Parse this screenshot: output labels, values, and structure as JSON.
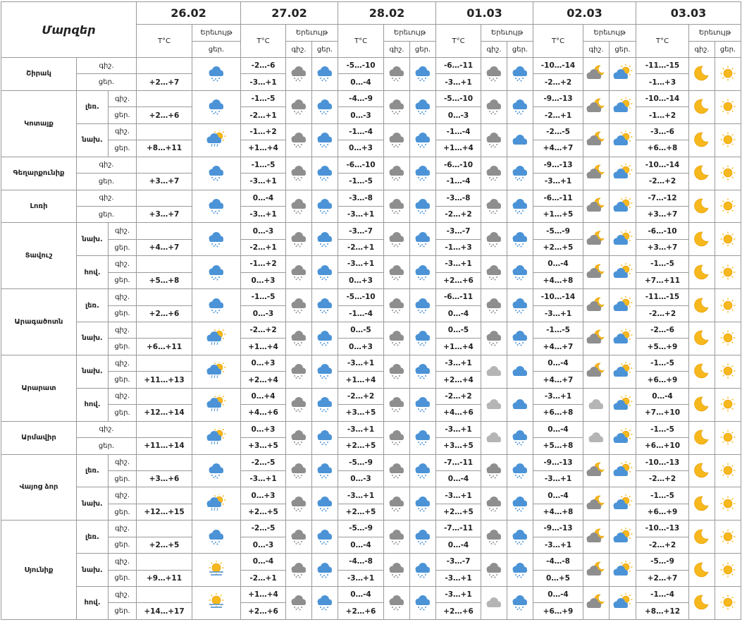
{
  "header": {
    "title": "Մարզեր",
    "columns": [
      {
        "date": "26.02",
        "temp": "T°C",
        "phenomenon": "Երեւույթ",
        "sub": [
          "ցեր."
        ]
      },
      {
        "date": "27.02",
        "temp": "T°C",
        "phenomenon": "Երեւույթ",
        "sub": [
          "գիշ.",
          "ցեր."
        ]
      },
      {
        "date": "28.02",
        "temp": "T°C",
        "phenomenon": "Երեւույթ",
        "sub": [
          "գիշ.",
          "ցեր."
        ]
      },
      {
        "date": "01.03",
        "temp": "T°C",
        "phenomenon": "Երեւույթ",
        "sub": [
          "գիշ.",
          "ցեր."
        ]
      },
      {
        "date": "02.03",
        "temp": "T°C",
        "phenomenon": "Երեւույթ",
        "sub": [
          "գիշ.",
          "ցեր."
        ]
      },
      {
        "date": "03.03",
        "temp": "T°C",
        "phenomenon": "Երեւույթ",
        "sub": [
          "գիշ.",
          "ցեր."
        ]
      }
    ]
  },
  "regions": [
    {
      "name": "Շիրակ",
      "zones": [
        {
          "night_label": "գիշ.",
          "night": [
            "-2…-6",
            "-5…-10",
            "-6…-11",
            "-10…-14",
            "-11…-15"
          ],
          "day_label": "ցեր.",
          "day": [
            "+2…+7",
            "-3…+1",
            "0…-4",
            "-3…+1",
            "-2…+2",
            "-1…+3"
          ]
        }
      ]
    },
    {
      "name": "Կոտայք",
      "zones": [
        {
          "zone": "լեռ.",
          "night_label": "գիշ.",
          "night": [
            "-1…-5",
            "-4…-9",
            "-5…-10",
            "-9…-13",
            "-10…-14"
          ],
          "day_label": "ցեր.",
          "day": [
            "+2…+6",
            "-2…+1",
            "0…-3",
            "0…-3",
            "-2…+1",
            "-1…+2"
          ]
        },
        {
          "zone": "նախ.",
          "night_label": "գիշ.",
          "night": [
            "-1…+2",
            "-1…-4",
            "-1…-4",
            "-2…-5",
            "-3…-6"
          ],
          "day_label": "ցեր.",
          "day": [
            "+8…+11",
            "+1…+4",
            "0…+3",
            "+1…+4",
            "+4…+7",
            "+6…+8"
          ]
        }
      ]
    },
    {
      "name": "Գեղարքունիք",
      "zones": [
        {
          "night_label": "գիշ.",
          "night": [
            "-1…-5",
            "-6…-10",
            "-6…-10",
            "-9…-13",
            "-10…-14"
          ],
          "day_label": "ցեր.",
          "day": [
            "+3…+7",
            "-3…+1",
            "-1…-5",
            "-1…-4",
            "-3…+1",
            "-2…+2"
          ]
        }
      ]
    },
    {
      "name": "Լոռի",
      "zones": [
        {
          "night_label": "գիշ.",
          "night": [
            "0…-4",
            "-3…-8",
            "-3…-8",
            "-6…-11",
            "-7…-12"
          ],
          "day_label": "ցեր.",
          "day": [
            "+3…+7",
            "-3…+1",
            "-3…+1",
            "-2…+2",
            "+1…+5",
            "+3…+7"
          ]
        }
      ]
    },
    {
      "name": "Տավուշ",
      "zones": [
        {
          "zone": "նախ.",
          "night_label": "գիշ.",
          "night": [
            "0…-3",
            "-3…-7",
            "-3…-7",
            "-5…-9",
            "-6…-10"
          ],
          "day_label": "ցեր.",
          "day": [
            "+4…+7",
            "-2…+1",
            "-2…+1",
            "-1…+3",
            "+2…+5",
            "+3…+7"
          ]
        },
        {
          "zone": "հով.",
          "night_label": "գիշ.",
          "night": [
            "-1…+2",
            "-3…+1",
            "-3…+1",
            "0…-4",
            "-1…-5"
          ],
          "day_label": "ցեր.",
          "day": [
            "+5…+8",
            "0…+3",
            "0…+3",
            "+2…+6",
            "+4…+8",
            "+7…+11"
          ]
        }
      ]
    },
    {
      "name": "Արագածոտն",
      "zones": [
        {
          "zone": "լեռ.",
          "night_label": "գիշ.",
          "night": [
            "-1…-5",
            "-5…-10",
            "-6…-11",
            "-10…-14",
            "-11…-15"
          ],
          "day_label": "ցեր.",
          "day": [
            "+2…+6",
            "0…-3",
            "-1…-4",
            "0…-4",
            "-3…+1",
            "-2…+2"
          ]
        },
        {
          "zone": "նախ.",
          "night_label": "գիշ.",
          "night": [
            "-2…+2",
            "0…-5",
            "0…-5",
            "-1…-5",
            "-2…-6"
          ],
          "day_label": "ցեր.",
          "day": [
            "+6…+11",
            "+1…+4",
            "0…+3",
            "+1…+4",
            "+4…+7",
            "+5…+9"
          ]
        }
      ]
    },
    {
      "name": "Արարատ",
      "zones": [
        {
          "zone": "նախ.",
          "night_label": "գիշ.",
          "night": [
            "0…+3",
            "-3…+1",
            "-3…+1",
            "0…-4",
            "-1…-5"
          ],
          "day_label": "ցեր.",
          "day": [
            "+11…+13",
            "+2…+4",
            "+1…+4",
            "+2…+4",
            "+4…+7",
            "+6…+9"
          ]
        },
        {
          "zone": "հով.",
          "night_label": "գիշ.",
          "night": [
            "0…+4",
            "-2…+2",
            "-2…+2",
            "-3…+1",
            "0…-4"
          ],
          "day_label": "ցեր.",
          "day": [
            "+12…+14",
            "+4…+6",
            "+3…+5",
            "+4…+6",
            "+6…+8",
            "+7…+10"
          ]
        }
      ]
    },
    {
      "name": "Արմավիր",
      "zones": [
        {
          "night_label": "գիշ.",
          "night": [
            "0…+3",
            "-3…+1",
            "-3…+1",
            "0…-4",
            "-1…-5"
          ],
          "day_label": "ցեր.",
          "day": [
            "+11…+14",
            "+3…+5",
            "+2…+5",
            "+3…+5",
            "+5…+8",
            "+6…+10"
          ]
        }
      ]
    },
    {
      "name": "Վայոց ձոր",
      "zones": [
        {
          "zone": "լեռ.",
          "night_label": "գիշ.",
          "night": [
            "-2…-5",
            "-5…-9",
            "-7…-11",
            "-9…-13",
            "-10…-13"
          ],
          "day_label": "ցեր.",
          "day": [
            "+3…+6",
            "-3…+1",
            "0…-3",
            "0…-4",
            "-3…+1",
            "-2…+2"
          ]
        },
        {
          "zone": "նախ.",
          "night_label": "գիշ.",
          "night": [
            "0…+3",
            "-3…+1",
            "-3…+1",
            "0…-4",
            "-1…-5"
          ],
          "day_label": "ցեր.",
          "day": [
            "+12…+15",
            "+2…+5",
            "+2…+5",
            "+2…+5",
            "+4…+8",
            "+6…+9"
          ]
        }
      ]
    },
    {
      "name": "Սյունիք",
      "zones": [
        {
          "zone": "լեռ.",
          "night_label": "գիշ.",
          "night": [
            "-2…-5",
            "-5…-9",
            "-7…-11",
            "-9…-13",
            "-10…-13"
          ],
          "day_label": "ցեր.",
          "day": [
            "+2…+5",
            "0…-3",
            "0…-4",
            "0…-4",
            "-3…+1",
            "-2…+2"
          ]
        },
        {
          "zone": "նախ.",
          "night_label": "գիշ.",
          "night": [
            "0…-4",
            "-4…-8",
            "-3…-7",
            "-4…-8",
            "-5…-9"
          ],
          "day_label": "ցեր.",
          "day": [
            "+9…+11",
            "-2…+1",
            "-3…+1",
            "-3…+1",
            "0…+5",
            "+2…+7"
          ]
        },
        {
          "zone": "հով.",
          "night_label": "գիշ.",
          "night": [
            "+1…+4",
            "0…-4",
            "-3…+1",
            "0…-4",
            "-1…-4"
          ],
          "day_label": "ցեր.",
          "day": [
            "+14…+17",
            "+2…+6",
            "+2…+6",
            "+2…+6",
            "+6…+9",
            "+8…+12"
          ]
        }
      ]
    }
  ]
}
